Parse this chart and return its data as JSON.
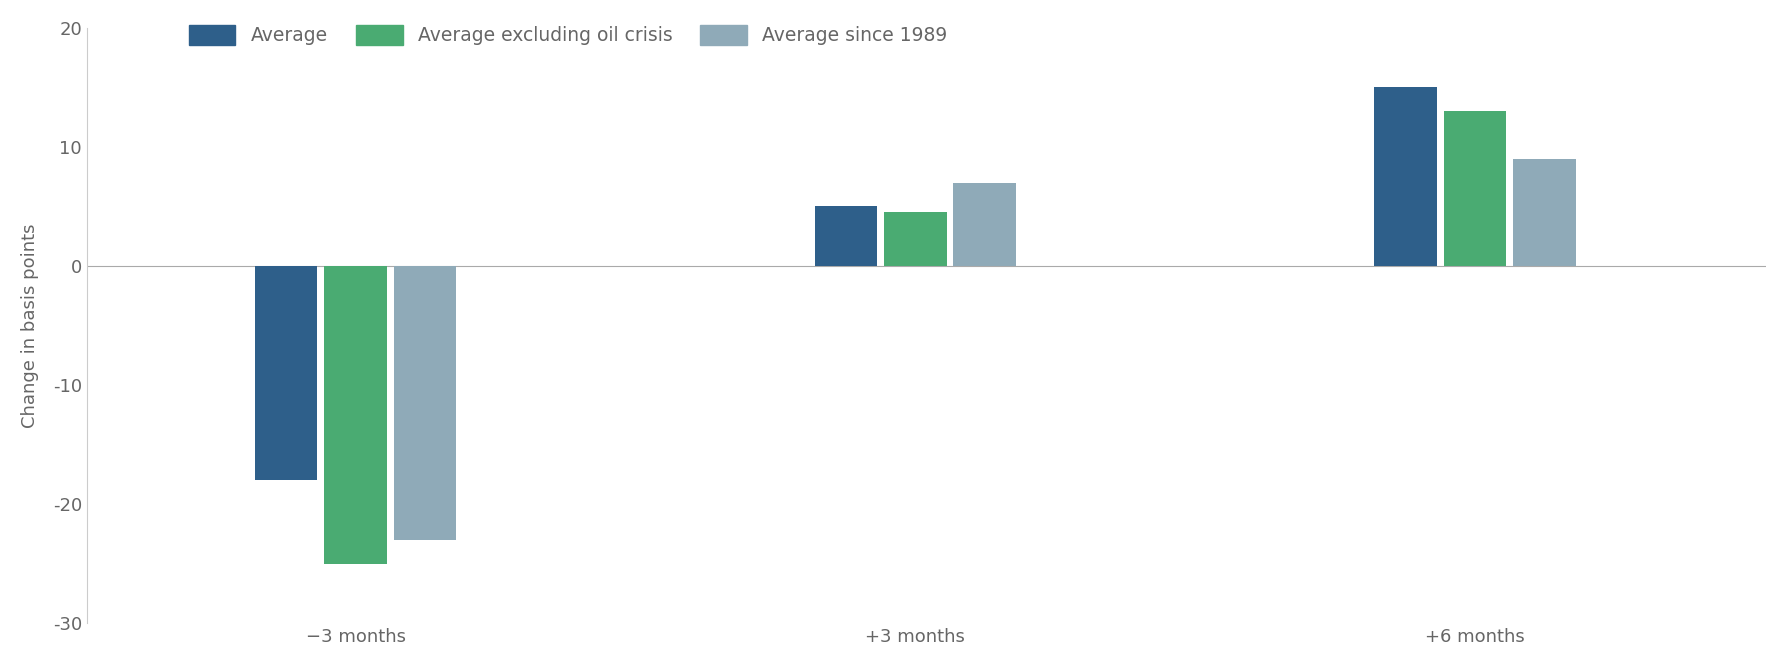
{
  "categories": [
    "−3 months",
    "+3 months",
    "+6 months"
  ],
  "series": [
    {
      "label": "Average",
      "color": "#2e5f8a",
      "values": [
        -18,
        5,
        15
      ]
    },
    {
      "label": "Average excluding oil crisis",
      "color": "#4aab72",
      "values": [
        -25,
        4.5,
        13
      ]
    },
    {
      "label": "Average since 1989",
      "color": "#8faab8",
      "values": [
        -23,
        7,
        9
      ]
    }
  ],
  "ylabel": "Change in basis points",
  "ylim": [
    -30,
    20
  ],
  "yticks": [
    -30,
    -20,
    -10,
    0,
    10,
    20
  ],
  "background_color": "#ffffff",
  "bar_width": 0.28,
  "group_centers": [
    1.0,
    3.5,
    6.0
  ],
  "xlim": [
    -0.2,
    7.3
  ],
  "legend_fontsize": 13.5,
  "ylabel_fontsize": 13,
  "tick_fontsize": 13,
  "zero_line_color": "#aaaaaa",
  "spine_color": "#cccccc"
}
